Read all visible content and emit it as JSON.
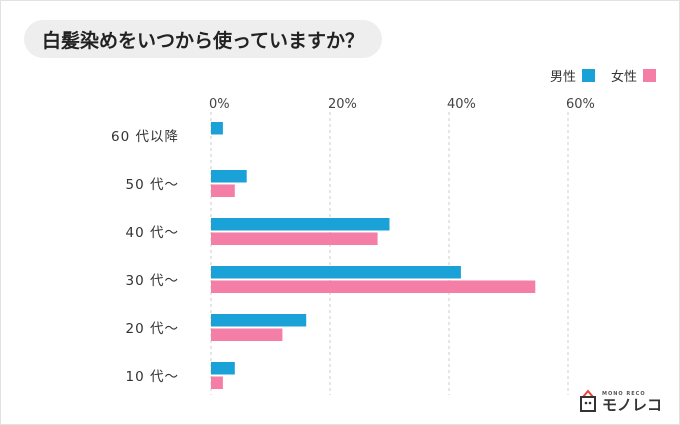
{
  "title": "白髪染めをいつから使っていますか？",
  "legend": {
    "male_label": "男性",
    "female_label": "女性"
  },
  "colors": {
    "male": "#1aa2d8",
    "female": "#f47ea6"
  },
  "logo": {
    "small_text": "MONO RECO",
    "text": "モノレコ"
  },
  "chart_data": {
    "type": "bar",
    "orientation": "horizontal",
    "title": "白髪染めをいつから使っていますか？",
    "categories": [
      "60代以降",
      "50代〜",
      "40代〜",
      "30代〜",
      "20代〜",
      "10代〜"
    ],
    "category_labels": [
      "60 代以降",
      "50 代〜",
      "40 代〜",
      "30 代〜",
      "20 代〜",
      "10 代〜"
    ],
    "series": [
      {
        "name": "男性",
        "values": [
          2,
          6,
          30,
          42,
          16,
          4
        ]
      },
      {
        "name": "女性",
        "values": [
          0,
          4,
          28,
          54.5,
          12,
          2
        ]
      }
    ],
    "xlim": [
      0,
      60
    ],
    "xticks": [
      0,
      20,
      40,
      60
    ],
    "xtick_labels": [
      "0%",
      "20%",
      "40%",
      "60%"
    ],
    "xlabel": "",
    "ylabel": "",
    "grid": true,
    "legend_position": "top-right"
  }
}
